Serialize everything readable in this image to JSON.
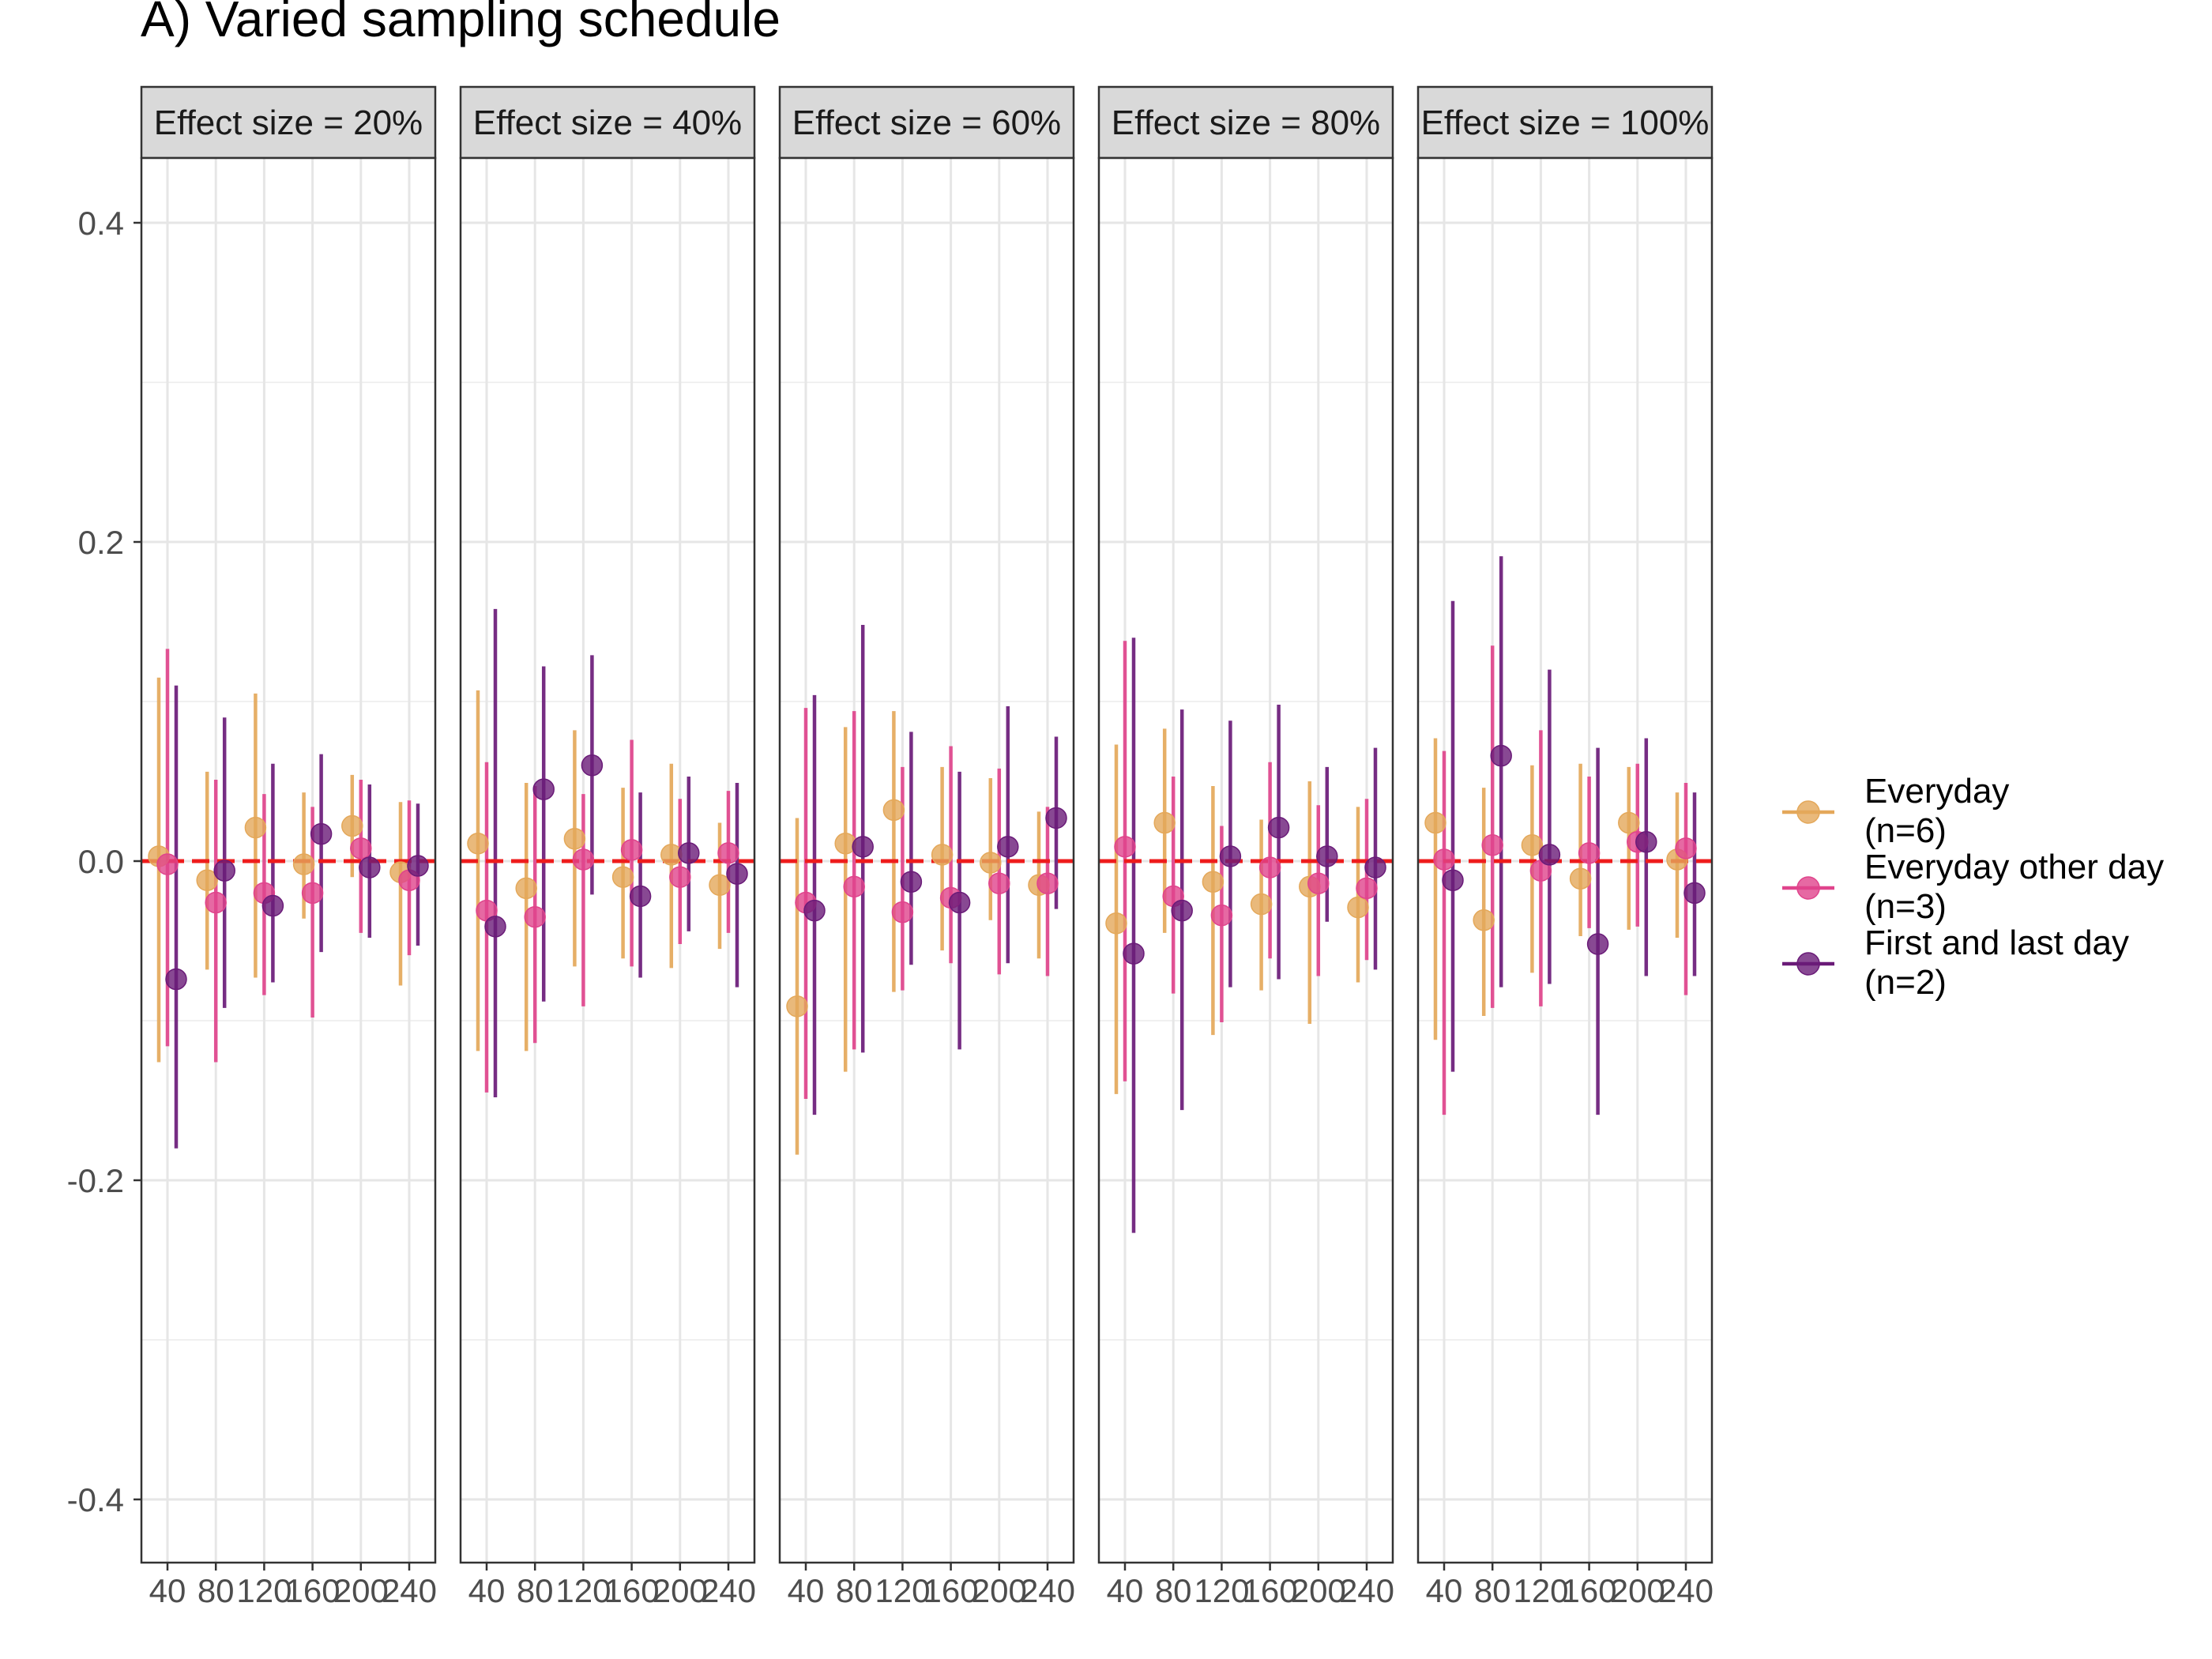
{
  "chart_data": {
    "type": "scatter",
    "subtype": "point-range, faceted",
    "title": "A) Varied sampling schedule",
    "xlabel": "",
    "ylabel": "",
    "ylim": [
      -0.44,
      0.44
    ],
    "y_ticks": [
      -0.4,
      -0.2,
      0.0,
      0.2,
      0.4
    ],
    "y_tick_labels": [
      "-0.4",
      "-0.2",
      "0.0",
      "0.2",
      "0.4"
    ],
    "x_categories": [
      40,
      80,
      120,
      160,
      200,
      240
    ],
    "x_tick_labels": [
      "40",
      "80",
      "120",
      "160",
      "200",
      "240"
    ],
    "reference_line": {
      "y": 0.0,
      "color": "#ee1c1c",
      "style": "dashed"
    },
    "grid": true,
    "legend_position": "right",
    "colors": {
      "Everyday": "#e4a85a",
      "Everyday other day": "#e0448c",
      "First and last day": "#6a1b78"
    },
    "series": [
      {
        "name": "Everyday",
        "n_label": "(n=6)"
      },
      {
        "name": "Everyday other day",
        "n_label": "(n=3)"
      },
      {
        "name": "First and last day",
        "n_label": "(n=2)"
      }
    ],
    "facets": [
      {
        "strip": "Effect size = 20%",
        "series": {
          "Everyday": [
            [
              0.003,
              -0.126,
              0.115
            ],
            [
              -0.012,
              -0.068,
              0.056
            ],
            [
              0.021,
              -0.073,
              0.105
            ],
            [
              -0.002,
              -0.036,
              0.043
            ],
            [
              0.022,
              -0.01,
              0.054
            ],
            [
              -0.007,
              -0.078,
              0.037
            ]
          ],
          "Everyday other day": [
            [
              -0.002,
              -0.116,
              0.133
            ],
            [
              -0.026,
              -0.126,
              0.051
            ],
            [
              -0.02,
              -0.084,
              0.042
            ],
            [
              -0.02,
              -0.098,
              0.034
            ],
            [
              0.008,
              -0.045,
              0.051
            ],
            [
              -0.012,
              -0.059,
              0.038
            ]
          ],
          "First and last day": [
            [
              -0.074,
              -0.18,
              0.11
            ],
            [
              -0.006,
              -0.092,
              0.09
            ],
            [
              -0.028,
              -0.076,
              0.061
            ],
            [
              0.017,
              -0.057,
              0.067
            ],
            [
              -0.004,
              -0.048,
              0.048
            ],
            [
              -0.003,
              -0.053,
              0.036
            ]
          ]
        }
      },
      {
        "strip": "Effect size = 40%",
        "series": {
          "Everyday": [
            [
              0.011,
              -0.119,
              0.107
            ],
            [
              -0.017,
              -0.119,
              0.049
            ],
            [
              0.014,
              -0.066,
              0.082
            ],
            [
              -0.01,
              -0.061,
              0.046
            ],
            [
              0.004,
              -0.067,
              0.061
            ],
            [
              -0.015,
              -0.055,
              0.024
            ]
          ],
          "Everyday other day": [
            [
              -0.031,
              -0.145,
              0.062
            ],
            [
              -0.035,
              -0.114,
              0.047
            ],
            [
              0.001,
              -0.091,
              0.042
            ],
            [
              0.007,
              -0.066,
              0.076
            ],
            [
              -0.01,
              -0.052,
              0.039
            ],
            [
              0.005,
              -0.045,
              0.044
            ]
          ],
          "First and last day": [
            [
              -0.041,
              -0.148,
              0.158
            ],
            [
              0.045,
              -0.088,
              0.122
            ],
            [
              0.06,
              -0.021,
              0.129
            ],
            [
              -0.022,
              -0.073,
              0.043
            ],
            [
              0.005,
              -0.044,
              0.053
            ],
            [
              -0.008,
              -0.079,
              0.049
            ]
          ]
        }
      },
      {
        "strip": "Effect size = 60%",
        "series": {
          "Everyday": [
            [
              -0.091,
              -0.184,
              0.027
            ],
            [
              0.011,
              -0.132,
              0.084
            ],
            [
              0.032,
              -0.082,
              0.094
            ],
            [
              0.004,
              -0.056,
              0.059
            ],
            [
              -0.001,
              -0.037,
              0.052
            ],
            [
              -0.015,
              -0.061,
              0.031
            ]
          ],
          "Everyday other day": [
            [
              -0.026,
              -0.149,
              0.096
            ],
            [
              -0.016,
              -0.118,
              0.094
            ],
            [
              -0.032,
              -0.081,
              0.059
            ],
            [
              -0.023,
              -0.064,
              0.072
            ],
            [
              -0.014,
              -0.071,
              0.058
            ],
            [
              -0.014,
              -0.072,
              0.034
            ]
          ],
          "First and last day": [
            [
              -0.031,
              -0.159,
              0.104
            ],
            [
              0.009,
              -0.12,
              0.148
            ],
            [
              -0.013,
              -0.065,
              0.081
            ],
            [
              -0.026,
              -0.118,
              0.056
            ],
            [
              0.009,
              -0.064,
              0.097
            ],
            [
              0.027,
              -0.03,
              0.078
            ]
          ]
        }
      },
      {
        "strip": "Effect size = 80%",
        "series": {
          "Everyday": [
            [
              -0.039,
              -0.146,
              0.073
            ],
            [
              0.024,
              -0.045,
              0.083
            ],
            [
              -0.013,
              -0.109,
              0.047
            ],
            [
              -0.027,
              -0.081,
              0.026
            ],
            [
              -0.016,
              -0.102,
              0.05
            ],
            [
              -0.029,
              -0.076,
              0.034
            ]
          ],
          "Everyday other day": [
            [
              0.009,
              -0.138,
              0.138
            ],
            [
              -0.022,
              -0.083,
              0.053
            ],
            [
              -0.034,
              -0.101,
              0.022
            ],
            [
              -0.004,
              -0.061,
              0.062
            ],
            [
              -0.014,
              -0.072,
              0.035
            ],
            [
              -0.017,
              -0.062,
              0.039
            ]
          ],
          "First and last day": [
            [
              -0.058,
              -0.233,
              0.14
            ],
            [
              -0.031,
              -0.156,
              0.095
            ],
            [
              0.003,
              -0.079,
              0.088
            ],
            [
              0.021,
              -0.074,
              0.098
            ],
            [
              0.003,
              -0.038,
              0.059
            ],
            [
              -0.004,
              -0.068,
              0.071
            ]
          ]
        }
      },
      {
        "strip": "Effect size = 100%",
        "series": {
          "Everyday": [
            [
              0.024,
              -0.112,
              0.077
            ],
            [
              -0.037,
              -0.097,
              0.046
            ],
            [
              0.01,
              -0.07,
              0.06
            ],
            [
              -0.011,
              -0.047,
              0.061
            ],
            [
              0.024,
              -0.043,
              0.059
            ],
            [
              0.001,
              -0.048,
              0.043
            ]
          ],
          "Everyday other day": [
            [
              0.001,
              -0.159,
              0.069
            ],
            [
              0.01,
              -0.092,
              0.135
            ],
            [
              -0.006,
              -0.091,
              0.082
            ],
            [
              0.005,
              -0.042,
              0.053
            ],
            [
              0.012,
              -0.041,
              0.061
            ],
            [
              0.008,
              -0.084,
              0.049
            ]
          ],
          "First and last day": [
            [
              -0.012,
              -0.132,
              0.163
            ],
            [
              0.066,
              -0.079,
              0.191
            ],
            [
              0.004,
              -0.077,
              0.12
            ],
            [
              -0.052,
              -0.159,
              0.071
            ],
            [
              0.012,
              -0.072,
              0.077
            ],
            [
              -0.02,
              -0.072,
              0.043
            ]
          ]
        }
      }
    ]
  }
}
